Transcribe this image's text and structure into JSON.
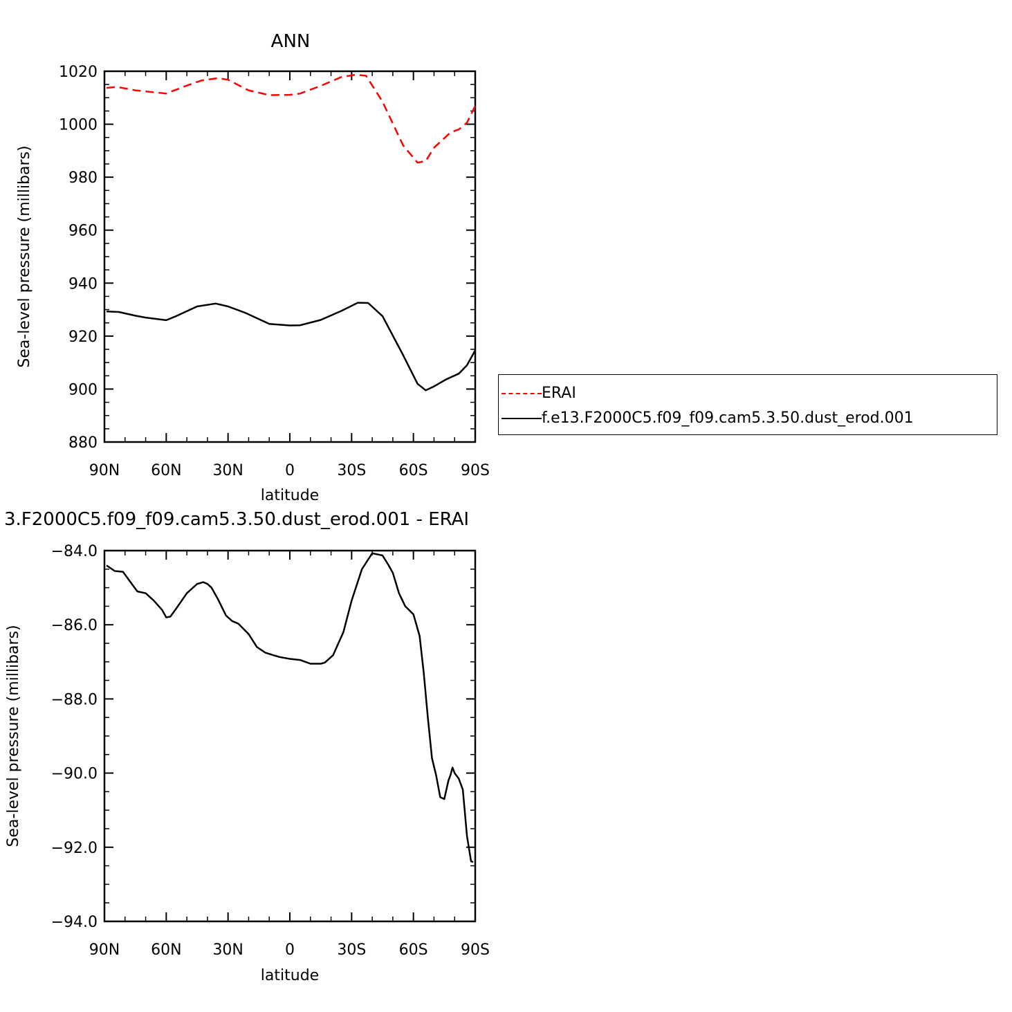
{
  "chart_data": [
    {
      "type": "line",
      "title": "ANN",
      "xlabel": "latitude",
      "ylabel": "Sea-level pressure (millibars)",
      "xlim": [
        90,
        -90
      ],
      "ylim": [
        880,
        1020
      ],
      "x_tick_values": [
        90,
        60,
        30,
        0,
        -30,
        -60,
        -90
      ],
      "x_tick_labels": [
        "90N",
        "60N",
        "30N",
        "0",
        "30S",
        "60S",
        "90S"
      ],
      "y_tick_values": [
        880,
        900,
        920,
        940,
        960,
        980,
        1000,
        1020
      ],
      "y_tick_labels": [
        "880",
        "900",
        "920",
        "940",
        "960",
        "980",
        "1000",
        "1020"
      ],
      "legend_position": "right",
      "series": [
        {
          "name": "ERAI",
          "color": "#ff0000",
          "dash": "dashed",
          "x": [
            89,
            84,
            75,
            60,
            50,
            43,
            35,
            30,
            20,
            10,
            0,
            -5,
            -15,
            -25,
            -32,
            -37,
            -45,
            -55,
            -62,
            -66,
            -70,
            -78,
            -82,
            -86,
            -90
          ],
          "y": [
            1013.7,
            1014.1,
            1012.8,
            1011.6,
            1014.6,
            1016.5,
            1017.4,
            1016.8,
            1012.8,
            1011.0,
            1011.1,
            1011.6,
            1014.5,
            1017.8,
            1018.7,
            1018.3,
            1008.5,
            992.0,
            985.5,
            986.1,
            991.1,
            996.9,
            998.0,
            1000.6,
            1006.9
          ]
        },
        {
          "name": "f.e13.F2000C5.f09_f09.cam5.3.50.dust_erod.001",
          "color": "#000000",
          "dash": "solid",
          "x": [
            89,
            83,
            75,
            70,
            60,
            55,
            45,
            36,
            30,
            22,
            10,
            0,
            -5,
            -15,
            -25,
            -33,
            -38,
            -45,
            -55,
            -62,
            -66,
            -70,
            -76,
            -82,
            -86,
            -90
          ],
          "y": [
            929.3,
            929.1,
            927.7,
            927.0,
            926.0,
            927.6,
            931.2,
            932.3,
            931.2,
            928.9,
            924.6,
            924.0,
            924.1,
            926.1,
            929.5,
            932.6,
            932.5,
            927.5,
            912.8,
            902.0,
            899.5,
            901.0,
            903.7,
            905.8,
            909.0,
            914.6
          ]
        }
      ]
    },
    {
      "type": "line",
      "title": "3.F2000C5.f09_f09.cam5.3.50.dust_erod.001 - ERAI",
      "xlabel": "latitude",
      "ylabel": "Sea-level pressure (millibars)",
      "xlim": [
        90,
        -90
      ],
      "ylim": [
        -94,
        -84
      ],
      "x_tick_values": [
        90,
        60,
        30,
        0,
        -30,
        -60,
        -90
      ],
      "x_tick_labels": [
        "90N",
        "60N",
        "30N",
        "0",
        "30S",
        "60S",
        "90S"
      ],
      "y_tick_values": [
        -94,
        -92,
        -90,
        -88,
        -86,
        -84
      ],
      "y_tick_labels": [
        "-94.0",
        "-92.0",
        "-90.0",
        "-88.0",
        "-86.0",
        "-84.0"
      ],
      "series": [
        {
          "name": "",
          "color": "#000000",
          "dash": "solid",
          "x": [
            89,
            85,
            81,
            78,
            74,
            70,
            66,
            62,
            60,
            58,
            55,
            50,
            45,
            42,
            40,
            38,
            35,
            31,
            28,
            25,
            20,
            16,
            12,
            8,
            5,
            0,
            -5,
            -10,
            -15,
            -17,
            -21,
            -26,
            -30,
            -35,
            -40,
            -45,
            -48,
            -50,
            -53,
            -56,
            -60,
            -63,
            -65,
            -67,
            -69,
            -71,
            -73,
            -75,
            -77,
            -78,
            -79,
            -80,
            -82,
            -84,
            -86,
            -88,
            -89
          ],
          "y": [
            -84.4,
            -84.55,
            -84.57,
            -84.8,
            -85.1,
            -85.15,
            -85.35,
            -85.6,
            -85.8,
            -85.78,
            -85.55,
            -85.15,
            -84.9,
            -84.85,
            -84.9,
            -85.0,
            -85.3,
            -85.75,
            -85.9,
            -85.97,
            -86.25,
            -86.6,
            -86.75,
            -86.82,
            -86.87,
            -86.92,
            -86.95,
            -87.05,
            -87.05,
            -87.02,
            -86.82,
            -86.2,
            -85.35,
            -84.5,
            -84.07,
            -84.13,
            -84.4,
            -84.6,
            -85.15,
            -85.5,
            -85.72,
            -86.3,
            -87.3,
            -88.5,
            -89.6,
            -90.05,
            -90.65,
            -90.7,
            -90.2,
            -90.05,
            -89.85,
            -90.0,
            -90.15,
            -90.45,
            -91.7,
            -92.38,
            -92.4
          ]
        }
      ]
    }
  ]
}
